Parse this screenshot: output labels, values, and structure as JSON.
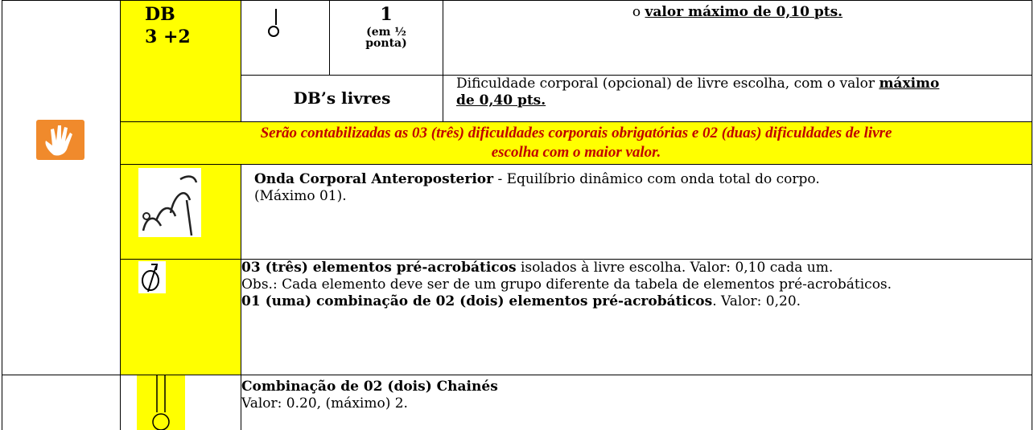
{
  "table": {
    "db": {
      "label": "DB",
      "count": "3 +2"
    },
    "row1": {
      "count": "1",
      "count_note": "(em ½ ponta)",
      "text_prefix": "o ",
      "text_bold": "valor máximo de 0,10 pts."
    },
    "row2": {
      "label": "DB’s livres",
      "text": "Dificuldade corporal (opcional) de livre escolha, com o valor ",
      "text_bold": "máximo de 0,40 pts."
    },
    "note": "Serão contabilizadas as 03 (três) dificuldades corporais obrigatórias e 02 (duas) dificuldades de livre escolha com o maior valor.",
    "wave": {
      "title": "Onda Corporal Anteroposterior",
      "text": " - Equilíbrio dinâmico com onda total do corpo. (Máximo 01)."
    },
    "acro": {
      "title1": "03 (três) elementos pré-acrobáticos",
      "text1": " isolados à livre escolha. Valor: 0,10 cada um.",
      "obs": "Obs.: Cada elemento deve ser de um grupo diferente da tabela de elementos pré-acrobáticos.",
      "title2": "01 (uma) combinação de 02 (dois) elementos pré-acrobáticos",
      "text2": ". Valor: 0,20."
    },
    "chaine": {
      "title": "Combinação de 02 (dois) Chainés",
      "text": "Valor: 0.20, (máximo) 2."
    }
  }
}
